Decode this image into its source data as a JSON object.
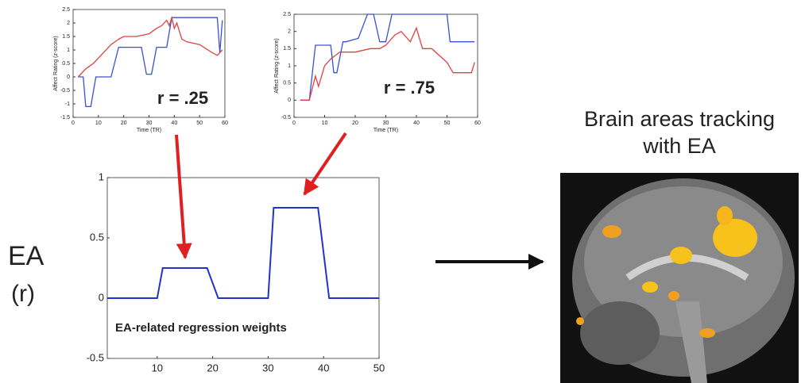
{
  "chart_data": [
    {
      "type": "line",
      "xlabel": "Time (TR)",
      "ylabel": "Affect Rating (z-score)",
      "annotation": "r = .25",
      "xlim": [
        0,
        60
      ],
      "ylim": [
        -1.5,
        2.5
      ],
      "xticks": [
        0,
        10,
        20,
        30,
        40,
        50,
        60
      ],
      "yticks": [
        -1.5,
        -1,
        -0.5,
        0,
        0.5,
        1,
        1.5,
        2,
        2.5
      ],
      "series": [
        {
          "color": "#3a4fd8",
          "x": [
            2,
            4,
            5,
            7,
            9,
            15,
            18,
            27,
            29,
            31,
            33,
            37,
            39,
            57,
            58,
            59
          ],
          "values": [
            0,
            0,
            -1.1,
            -1.1,
            0,
            0,
            1.1,
            1.1,
            0.1,
            0.1,
            1.1,
            1.1,
            2.2,
            2.2,
            0.9,
            2.1
          ]
        },
        {
          "color": "#e04040",
          "x": [
            2,
            5,
            8,
            10,
            12,
            15,
            18,
            20,
            25,
            30,
            33,
            35,
            37,
            38,
            39,
            40,
            41,
            43,
            45,
            50,
            55,
            57,
            59
          ],
          "values": [
            0,
            0.3,
            0.5,
            0.7,
            0.9,
            1.2,
            1.4,
            1.5,
            1.5,
            1.6,
            1.8,
            1.9,
            2.1,
            1.9,
            2.2,
            1.8,
            2.0,
            1.4,
            1.3,
            1.2,
            0.9,
            0.8,
            1.0
          ]
        }
      ]
    },
    {
      "type": "line",
      "xlabel": "Time (TR)",
      "ylabel": "Affect Rating (z-score)",
      "annotation": "r = .75",
      "xlim": [
        0,
        60
      ],
      "ylim": [
        -0.5,
        2.5
      ],
      "xticks": [
        0,
        10,
        20,
        30,
        40,
        50,
        60
      ],
      "yticks": [
        -0.5,
        0,
        0.5,
        1,
        1.5,
        2,
        2.5
      ],
      "series": [
        {
          "color": "#3a4fd8",
          "x": [
            2,
            5,
            7,
            10,
            12,
            13,
            14,
            16,
            17,
            21,
            24,
            26,
            28,
            30,
            32,
            34,
            50,
            51,
            59
          ],
          "values": [
            0,
            0,
            1.6,
            1.6,
            1.6,
            0.8,
            0.8,
            1.7,
            1.7,
            1.8,
            2.5,
            2.5,
            1.7,
            1.7,
            2.5,
            2.5,
            2.5,
            1.7,
            1.7
          ]
        },
        {
          "color": "#e04040",
          "x": [
            2,
            5,
            7,
            8,
            10,
            12,
            15,
            20,
            25,
            28,
            30,
            33,
            35,
            38,
            40,
            42,
            45,
            50,
            52,
            55,
            58,
            59
          ],
          "values": [
            0,
            0,
            0.7,
            0.4,
            1.0,
            1.2,
            1.4,
            1.4,
            1.5,
            1.5,
            1.6,
            1.9,
            2.0,
            1.7,
            2.1,
            1.5,
            1.5,
            1.1,
            0.8,
            0.8,
            0.8,
            1.1
          ]
        }
      ]
    },
    {
      "type": "line",
      "annotation": "EA-related regression weights",
      "xlim": [
        1,
        50
      ],
      "ylim": [
        -0.5,
        1
      ],
      "xticks": [
        10,
        20,
        30,
        40,
        50
      ],
      "yticks": [
        -0.5,
        0,
        0.5,
        1
      ],
      "series": [
        {
          "color": "#2233cc",
          "x": [
            1,
            10,
            11,
            19,
            21,
            30,
            31,
            39,
            41,
            50
          ],
          "values": [
            0,
            0,
            0.25,
            0.25,
            0,
            0,
            0.75,
            0.75,
            0,
            0
          ]
        }
      ]
    }
  ],
  "ea_label": "EA",
  "ea_unit": "(r)",
  "brain_title": "Brain areas tracking with EA"
}
